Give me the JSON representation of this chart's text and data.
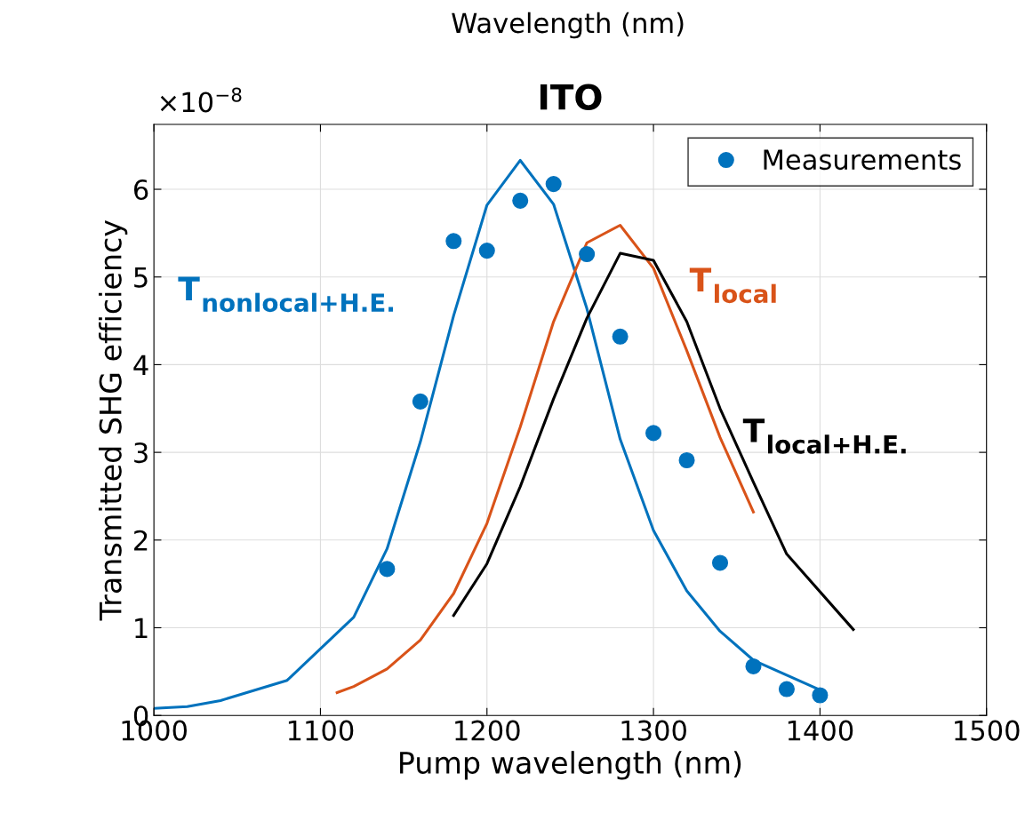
{
  "chart_data": {
    "type": "line",
    "title": "ITO",
    "xlabel": "Pump wavelength (nm)",
    "ylabel": "Transmitted SHG efficiency",
    "xlim": [
      1000,
      1500
    ],
    "xticks": [
      1000,
      1100,
      1200,
      1300,
      1400,
      1500
    ],
    "ylim": [
      0,
      6.74
    ],
    "yticks": [
      0,
      1,
      2,
      3,
      4,
      5,
      6
    ],
    "grid": true,
    "legend": "top right",
    "line_style": "solid",
    "series": [
      {
        "name": "T$_{nonlocal+H.E.}$",
        "color": "#0072bd",
        "x": [
          1000,
          1020,
          1040,
          1080,
          1120,
          1140,
          1160,
          1180,
          1200,
          1220,
          1240,
          1260,
          1280,
          1300,
          1320,
          1340,
          1360,
          1400
        ],
        "values": [
          0.08,
          0.1,
          0.17,
          0.4,
          1.12,
          1.9,
          3.12,
          4.56,
          5.82,
          6.33,
          5.83,
          4.64,
          3.15,
          2.11,
          1.42,
          0.96,
          0.63,
          0.29
        ]
      },
      {
        "name": "T$_{local}$",
        "color": "#d95319",
        "x": [
          1110,
          1120,
          1140,
          1160,
          1180,
          1200,
          1220,
          1240,
          1260,
          1280,
          1300,
          1320,
          1340,
          1360
        ],
        "values": [
          0.26,
          0.33,
          0.53,
          0.86,
          1.39,
          2.19,
          3.29,
          4.49,
          5.39,
          5.59,
          5.1,
          4.16,
          3.17,
          2.32
        ]
      },
      {
        "name": "T$_{local+H.E.}$",
        "color": "#000000",
        "x": [
          1180,
          1200,
          1220,
          1240,
          1260,
          1280,
          1300,
          1320,
          1340,
          1360,
          1380,
          1420
        ],
        "values": [
          1.14,
          1.73,
          2.61,
          3.61,
          4.53,
          5.27,
          5.19,
          4.49,
          3.5,
          2.66,
          1.84,
          0.98
        ]
      },
      {
        "type": "scatter",
        "name": "Measurements",
        "color": "#0072bd",
        "marker": "circle",
        "x": [
          1140,
          1160,
          1180,
          1200,
          1220,
          1240,
          1260,
          1280,
          1300,
          1320,
          1340,
          1360,
          1380,
          1400
        ],
        "values": [
          1.67,
          3.58,
          5.41,
          5.3,
          5.87,
          6.06,
          5.26,
          4.32,
          3.22,
          2.91,
          1.74,
          0.56,
          0.3,
          0.23
        ]
      }
    ],
    "annotations": [
      "×10$^{−8}$",
      "Wavelength (nm)"
    ]
  }
}
